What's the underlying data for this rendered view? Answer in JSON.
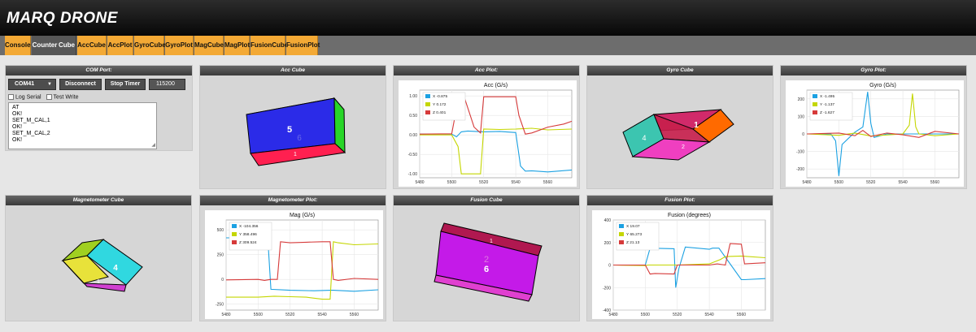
{
  "app": {
    "title": "MARQ DRONE"
  },
  "nav": [
    {
      "label": "Console",
      "active": false
    },
    {
      "label": "Counter",
      "active": true
    },
    {
      "label": "Cube",
      "active": true
    },
    {
      "label": "AccCube",
      "active": false
    },
    {
      "label": "AccPlot",
      "active": false
    },
    {
      "label": "GyroCube",
      "active": false
    },
    {
      "label": "GyroPlot",
      "active": false
    },
    {
      "label": "MagCube",
      "active": false
    },
    {
      "label": "MagPlot",
      "active": false
    },
    {
      "label": "FusionCube",
      "active": false
    },
    {
      "label": "FusionPlot",
      "active": false
    }
  ],
  "com": {
    "title": "COM Port:",
    "port": "COM41",
    "disconnect": "Disconnect",
    "stop_timer": "Stop Timer",
    "baud": "115200",
    "log_serial": "Log Serial",
    "test_write": "Test Write",
    "console_lines": [
      "AT",
      "OK!",
      "SET_M_CAL,1",
      "OK!",
      "SET_M_CAL,2",
      "OK!"
    ]
  },
  "panels": {
    "acc_cube": "Acc Cube",
    "acc_plot": "Acc Plot:",
    "gyro_cube": "Gyro Cube",
    "gyro_plot": "Gyro Plot:",
    "mag_cube": "Magnetometer Cube",
    "mag_plot": "Magnetometer Plot:",
    "fusion_cube": "Fusion Cube",
    "fusion_plot": "Fusion Plot:"
  },
  "cubes": {
    "acc": {
      "front_label": "5",
      "back_label": "6",
      "side_label": "1"
    },
    "gyro": {
      "top_label": "1",
      "left_label": "4",
      "bottom_label": "2"
    },
    "mag": {
      "front_label": "4",
      "bottom_label": "1"
    },
    "fusion": {
      "front_label_1": "2",
      "front_label_2": "6",
      "top_label": "1"
    }
  },
  "colors": {
    "x": "#1ba1e2",
    "y": "#c4d600",
    "z": "#d63a3a",
    "nav": "#f3a935"
  },
  "chart_data": [
    {
      "type": "line",
      "title": "Acc (G/s)",
      "x_ticks": [
        "5480",
        "5500",
        "5520",
        "5540",
        "5560"
      ],
      "xlim": [
        5480,
        5575
      ],
      "y_ticks": [
        "1.00",
        "0.50",
        "0.00",
        "-0.50",
        "-1.00"
      ],
      "ylim": [
        -1.1,
        1.15
      ],
      "series": [
        {
          "name": "X",
          "legend_value": "-0.875",
          "color": "#1ba1e2",
          "x": [
            5480,
            5500,
            5503,
            5506,
            5510,
            5520,
            5530,
            5540,
            5543,
            5546,
            5550,
            5560,
            5575
          ],
          "y": [
            0.02,
            0.02,
            -0.05,
            0.08,
            0.1,
            0.08,
            0.09,
            0.06,
            -0.8,
            -0.93,
            -0.92,
            -0.95,
            -0.9
          ]
        },
        {
          "name": "Y",
          "legend_value": "0.172",
          "color": "#c4d600",
          "x": [
            5480,
            5500,
            5504,
            5506,
            5516,
            5518,
            5520,
            5530,
            5540,
            5550,
            5560,
            5575
          ],
          "y": [
            0.0,
            0.0,
            -0.3,
            -1.0,
            -1.0,
            -1.0,
            0.15,
            0.14,
            0.15,
            0.17,
            0.13,
            0.15
          ]
        },
        {
          "name": "Z",
          "legend_value": "0.401",
          "color": "#d63a3a",
          "x": [
            5480,
            5500,
            5504,
            5508,
            5514,
            5518,
            5520,
            5530,
            5540,
            5542,
            5546,
            5550,
            5560,
            5570,
            5575
          ],
          "y": [
            0.02,
            0.03,
            0.9,
            0.95,
            0.2,
            0.05,
            0.98,
            0.98,
            0.98,
            0.5,
            0.02,
            0.05,
            0.2,
            0.28,
            0.35
          ]
        }
      ]
    },
    {
      "type": "line",
      "title": "Gyro (G/s)",
      "x_ticks": [
        "5480",
        "5500",
        "5520",
        "5540",
        "5560"
      ],
      "xlim": [
        5480,
        5575
      ],
      "y_ticks": [
        "200",
        "100",
        "0",
        "-100",
        "-200"
      ],
      "ylim": [
        -250,
        250
      ],
      "series": [
        {
          "name": "X",
          "legend_value": "-1.495",
          "color": "#1ba1e2",
          "x": [
            5480,
            5495,
            5498,
            5500,
            5502,
            5510,
            5515,
            5518,
            5520,
            5522,
            5530,
            5550,
            5575
          ],
          "y": [
            0,
            0,
            -40,
            -240,
            -60,
            10,
            40,
            240,
            60,
            -20,
            0,
            0,
            0
          ]
        },
        {
          "name": "Y",
          "legend_value": "-1.137",
          "color": "#c4d600",
          "x": [
            5480,
            5500,
            5510,
            5520,
            5540,
            5544,
            5546,
            5548,
            5550,
            5560,
            5575
          ],
          "y": [
            0,
            -8,
            5,
            -12,
            0,
            50,
            230,
            40,
            0,
            -10,
            0
          ]
        },
        {
          "name": "Z",
          "legend_value": "-1.627",
          "color": "#d63a3a",
          "x": [
            5480,
            5500,
            5510,
            5515,
            5520,
            5530,
            5540,
            5550,
            5560,
            5575
          ],
          "y": [
            0,
            5,
            -10,
            20,
            -15,
            5,
            -5,
            -20,
            15,
            0
          ]
        }
      ]
    },
    {
      "type": "line",
      "title": "Mag (G/s)",
      "x_ticks": [
        "5480",
        "5500",
        "5520",
        "5540",
        "5560"
      ],
      "xlim": [
        5480,
        5575
      ],
      "y_ticks": [
        "500",
        "250",
        "0",
        "-250"
      ],
      "ylim": [
        -310,
        600
      ],
      "series": [
        {
          "name": "X",
          "legend_value": "-104.356",
          "color": "#1ba1e2",
          "x": [
            5480,
            5500,
            5502,
            5506,
            5508,
            5520,
            5535,
            5545,
            5547,
            5560,
            5575
          ],
          "y": [
            420,
            420,
            430,
            420,
            -100,
            -110,
            -115,
            -110,
            -110,
            -120,
            -105
          ]
        },
        {
          "name": "Y",
          "legend_value": "358.496",
          "color": "#c4d600",
          "x": [
            5480,
            5500,
            5510,
            5520,
            5530,
            5540,
            5545,
            5547,
            5550,
            5560,
            5575
          ],
          "y": [
            -180,
            -180,
            -170,
            -175,
            -180,
            -200,
            -200,
            380,
            370,
            350,
            358
          ]
        },
        {
          "name": "Z",
          "legend_value": "309.524",
          "color": "#d63a3a",
          "x": [
            5480,
            5500,
            5504,
            5508,
            5512,
            5514,
            5520,
            5530,
            5540,
            5545,
            5547,
            5550,
            5560,
            5575
          ],
          "y": [
            -5,
            0,
            -10,
            0,
            0,
            380,
            370,
            375,
            380,
            380,
            0,
            -10,
            10,
            0
          ]
        }
      ]
    },
    {
      "type": "line",
      "title": "Fusion (degrees)",
      "x_ticks": [
        "5480",
        "5500",
        "5520",
        "5540",
        "5560"
      ],
      "xlim": [
        5480,
        5575
      ],
      "y_ticks": [
        "400",
        "200",
        "0",
        "-200",
        "-400"
      ],
      "ylim": [
        -400,
        400
      ],
      "series": [
        {
          "name": "X",
          "legend_value": "19.07",
          "color": "#1ba1e2",
          "x": [
            5480,
            5500,
            5503,
            5518,
            5519,
            5521,
            5525,
            5540,
            5542,
            5546,
            5560,
            5562,
            5575
          ],
          "y": [
            0,
            0,
            150,
            145,
            -200,
            -30,
            160,
            140,
            150,
            150,
            -130,
            -130,
            -120
          ]
        },
        {
          "name": "Y",
          "legend_value": "65.273",
          "color": "#c4d600",
          "x": [
            5480,
            5500,
            5502,
            5520,
            5540,
            5547,
            5550,
            5560,
            5575
          ],
          "y": [
            0,
            -5,
            0,
            0,
            10,
            50,
            75,
            80,
            65
          ]
        },
        {
          "name": "Z",
          "legend_value": "21.13",
          "color": "#d63a3a",
          "x": [
            5480,
            5500,
            5503,
            5506,
            5518,
            5520,
            5540,
            5545,
            5550,
            5553,
            5560,
            5562,
            5575
          ],
          "y": [
            0,
            0,
            -80,
            -75,
            -80,
            0,
            0,
            10,
            0,
            190,
            185,
            10,
            20
          ]
        }
      ]
    }
  ]
}
